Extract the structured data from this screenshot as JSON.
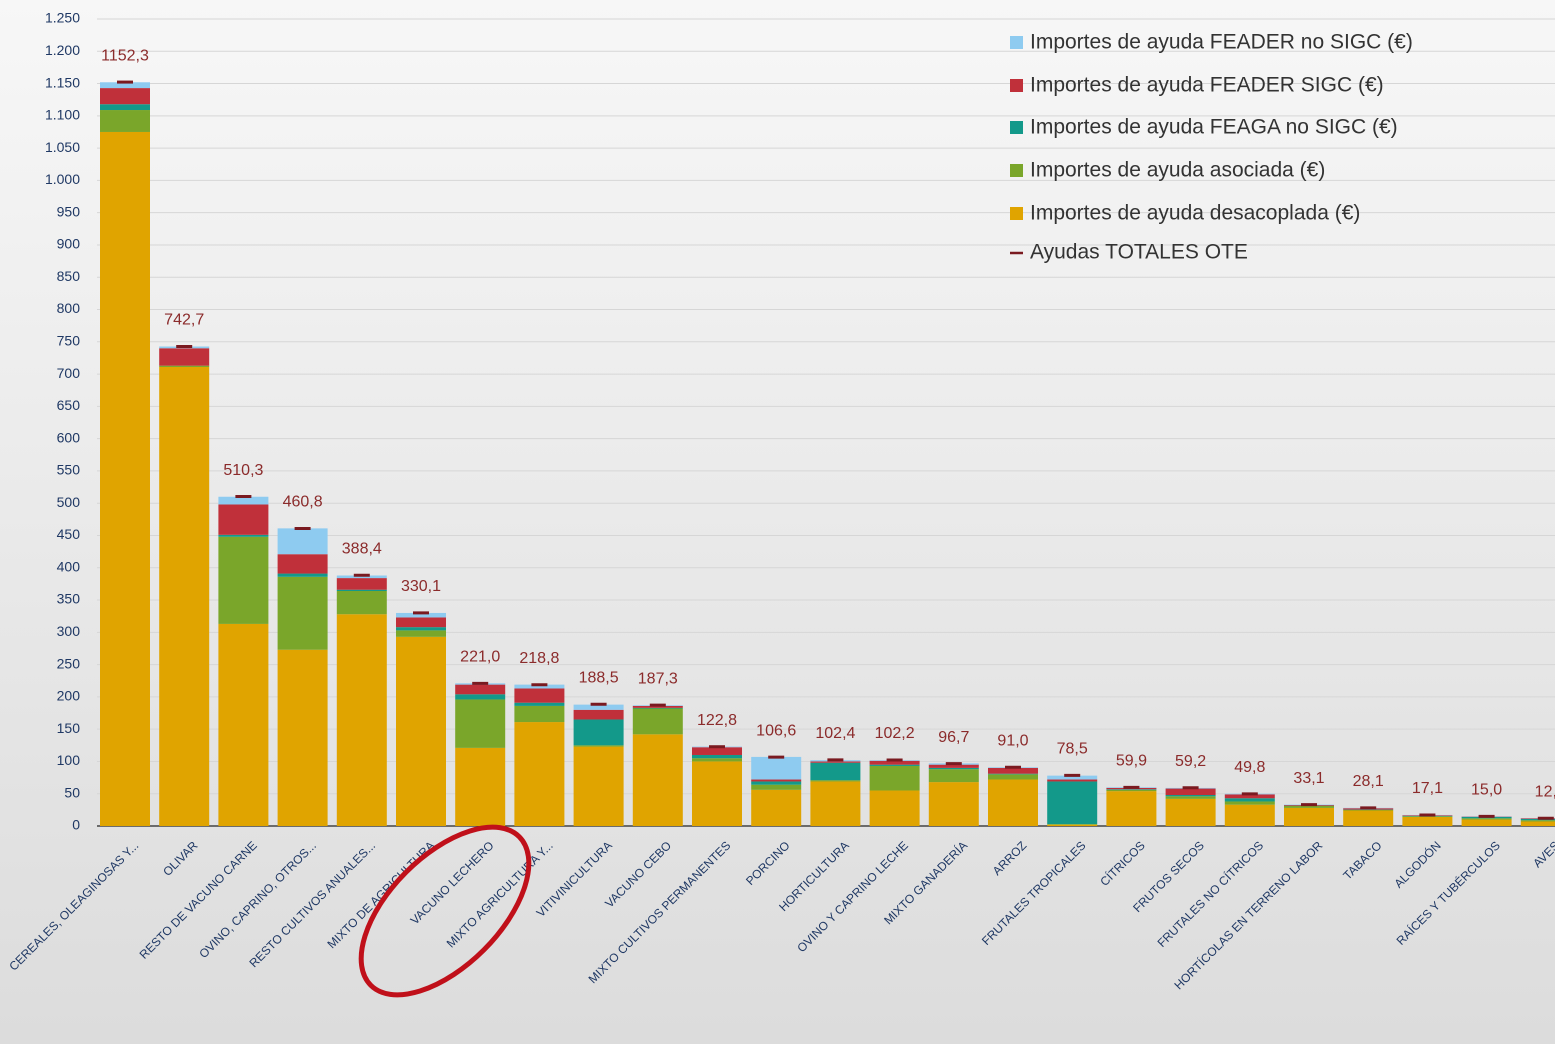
{
  "chart_data": {
    "type": "bar",
    "stacked": true,
    "grid": true,
    "legend": "top-right",
    "categories": [
      "CEREALES, OLEAGINOSAS Y...",
      "OLIVAR",
      "RESTO DE VACUNO CARNE",
      "OVINO, CAPRINO, OTROS...",
      "RESTO CULTIVOS ANUALES...",
      "MIXTO DE AGRICULTURA",
      "VACUNO LECHERO",
      "MIXTO AGRICULTURA Y...",
      "VITIVINICULTURA",
      "VACUNO CEBO",
      "MIXTO CULTIVOS PERMANENTES",
      "PORCINO",
      "HORTICULTURA",
      "OVINO Y CAPRINO LECHE",
      "MIXTO GANADERÍA",
      "ARROZ",
      "FRUTALES TROPICALES",
      "CÍTRICOS",
      "FRUTOS SECOS",
      "FRUTALES NO CÍTRICOS",
      "HORTÍCOLAS EN TERRENO LABOR",
      "TABACO",
      "ALGODÓN",
      "RAÍCES Y TUBÉRCULOS",
      "AVES"
    ],
    "series": [
      {
        "name": "Importes de ayuda desacoplada  (€)",
        "color": "#e0a400",
        "values": [
          1075,
          711,
          313,
          273,
          328,
          293,
          121,
          161,
          123,
          142,
          100,
          56,
          69,
          55,
          68,
          72,
          2,
          54,
          42,
          33,
          28,
          24,
          14,
          10,
          7
        ]
      },
      {
        "name": "Importes de ayuda asociada (€)",
        "color": "#7aa62a",
        "values": [
          34,
          2,
          135,
          113,
          36,
          10,
          75,
          25,
          2,
          40,
          5,
          8,
          2,
          38,
          20,
          8,
          1,
          2,
          4,
          5,
          3,
          1,
          1,
          2,
          2
        ]
      },
      {
        "name": "Importes de ayuda FEAGA no SIGC  (€)",
        "color": "#13998a",
        "values": [
          9,
          0,
          3,
          5,
          2,
          5,
          8,
          5,
          40,
          1,
          5,
          5,
          27,
          2,
          2,
          1,
          66,
          1,
          2,
          5,
          0.5,
          0.5,
          0.5,
          2,
          2
        ]
      },
      {
        "name": "Importes de ayuda FEADER SIGC  (€)",
        "color": "#c0303a",
        "values": [
          25,
          27,
          47,
          30,
          18,
          15,
          15,
          22,
          15,
          3,
          12,
          3,
          2,
          6,
          5,
          9,
          3,
          2,
          10,
          6,
          1,
          2,
          1,
          0.5,
          1
        ]
      },
      {
        "name": "Importes de ayuda FEADER no SIGC  (€)",
        "color": "#8ecbf0",
        "values": [
          9,
          2.7,
          12,
          40,
          4,
          7,
          2,
          6,
          8,
          1,
          1,
          35,
          2,
          1,
          2,
          1,
          6,
          1,
          1,
          1,
          0.6,
          0.6,
          0.6,
          0.5,
          0.3
        ]
      }
    ],
    "totals": {
      "name": "Ayudas TOTALES OTE",
      "color": "#7a1a20",
      "values": [
        1152.3,
        742.7,
        510.3,
        460.8,
        388.4,
        330.1,
        221.0,
        218.8,
        188.5,
        187.3,
        122.8,
        106.6,
        102.4,
        102.2,
        96.7,
        91.0,
        78.5,
        59.9,
        59.2,
        49.8,
        33.1,
        28.1,
        17.1,
        15.0,
        12
      ],
      "value_labels": [
        "1152,3",
        "742,7",
        "510,3",
        "460,8",
        "388,4",
        "330,1",
        "221,0",
        "218,8",
        "188,5",
        "187,3",
        "122,8",
        "106,6",
        "102,4",
        "102,2",
        "96,7",
        "91,0",
        "78,5",
        "59,9",
        "59,2",
        "49,8",
        "33,1",
        "28,1",
        "17,1",
        "15,0",
        "12,"
      ]
    },
    "ylim": [
      0,
      1250
    ],
    "yticks": [
      0,
      50,
      100,
      150,
      200,
      250,
      300,
      350,
      400,
      450,
      500,
      550,
      600,
      650,
      700,
      750,
      800,
      850,
      900,
      950,
      {
        "value": 1000,
        "label": "1.000"
      },
      {
        "value": 1050,
        "label": "1.050"
      },
      {
        "value": 1100,
        "label": "1.100"
      },
      {
        "value": 1150,
        "label": "1.150"
      },
      {
        "value": 1200,
        "label": "1.200"
      },
      {
        "value": 1250,
        "label": "1.250"
      }
    ]
  }
}
